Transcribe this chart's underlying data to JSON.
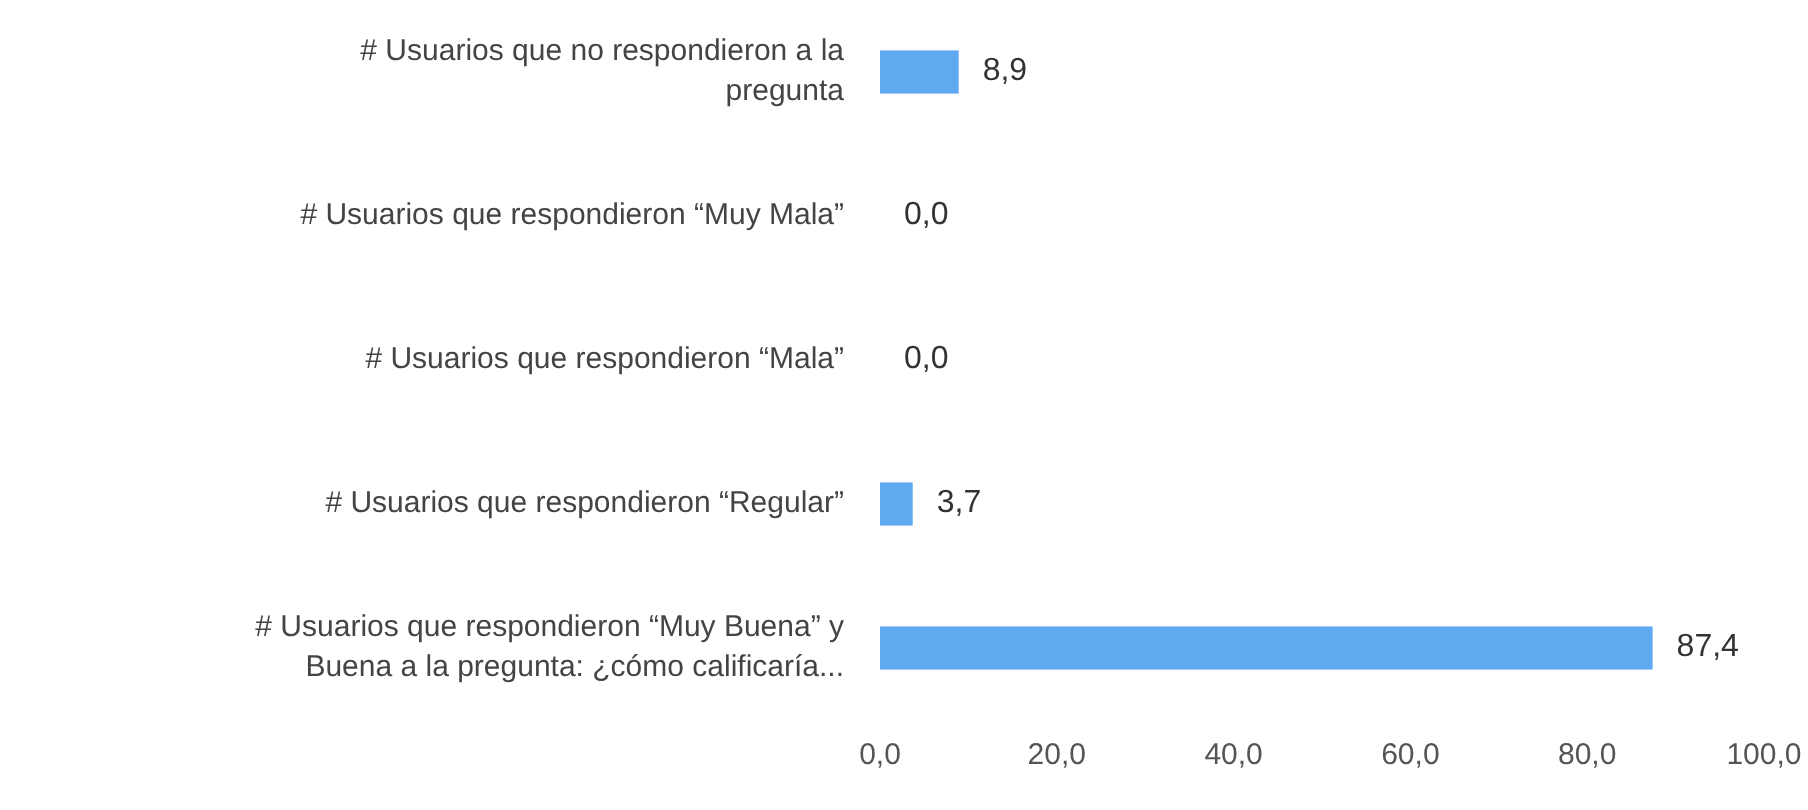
{
  "chart_data": {
    "type": "bar",
    "orientation": "horizontal",
    "categories": [
      "# Usuarios que no respondieron a la pregunta",
      "# Usuarios que respondieron “Muy Mala”",
      "# Usuarios que respondieron “Mala”",
      "# Usuarios que respondieron “Regular”",
      "# Usuarios que respondieron “Muy Buena” y Buena a la pregunta: ¿cómo calificaría..."
    ],
    "values": [
      8.9,
      0,
      0,
      3.7,
      87.4
    ],
    "value_labels": [
      "8,9",
      "0,0",
      "0,0",
      "3,7",
      "87,4"
    ],
    "color": "#5ea9ef",
    "xlim": [
      0,
      100
    ],
    "xticks": [
      {
        "value": 0,
        "label": "0,0"
      },
      {
        "value": 20,
        "label": "20,0"
      },
      {
        "value": 40,
        "label": "40,0"
      },
      {
        "value": 60,
        "label": "60,0"
      },
      {
        "value": 80,
        "label": "80,0"
      },
      {
        "value": 100,
        "label": "100,0"
      }
    ],
    "grid": false
  }
}
